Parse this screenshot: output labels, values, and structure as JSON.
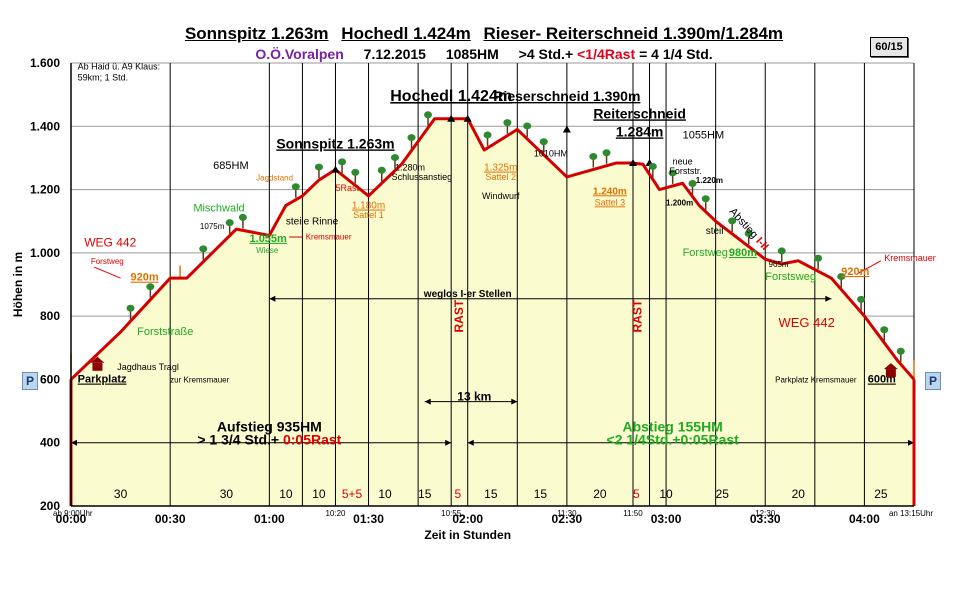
{
  "header": {
    "title_parts": [
      "Sonnspitz 1.263m",
      "Hochedl 1.424m",
      "Rieser- Reiterschneid 1.390m/1.284m"
    ],
    "region": "O.Ö.Voralpen",
    "date": "7.12.2015",
    "hm": "1085HM",
    "time_prefix": ">4 Std.+",
    "time_rast": "<1/4Rast",
    "time_total": "= 4 1/4 Std.",
    "badge": "60/15",
    "colors": {
      "region": "#7a1fa2",
      "rast": "#e0001a"
    }
  },
  "parking": {
    "left": "P",
    "right": "P"
  },
  "chart_data": {
    "type": "area",
    "xlabel": "Zeit in Stunden",
    "ylabel": "Höhen in m",
    "xlim": [
      0,
      255
    ],
    "ylim": [
      200,
      1600
    ],
    "x_ticks": [
      {
        "v": 0,
        "label": "00:00"
      },
      {
        "v": 30,
        "label": "00:30"
      },
      {
        "v": 60,
        "label": "01:00"
      },
      {
        "v": 90,
        "label": "01:30"
      },
      {
        "v": 120,
        "label": "02:00"
      },
      {
        "v": 150,
        "label": "02:30"
      },
      {
        "v": 180,
        "label": "03:00"
      },
      {
        "v": 210,
        "label": "03:30"
      },
      {
        "v": 240,
        "label": "04:00"
      }
    ],
    "y_ticks": [
      {
        "v": 200,
        "label": "200"
      },
      {
        "v": 400,
        "label": "400"
      },
      {
        "v": 600,
        "label": "600"
      },
      {
        "v": 800,
        "label": "800"
      },
      {
        "v": 1000,
        "label": "1.000"
      },
      {
        "v": 1200,
        "label": "1.200"
      },
      {
        "v": 1400,
        "label": "1.400"
      },
      {
        "v": 1600,
        "label": "1.600"
      }
    ],
    "profile": {
      "x": [
        0,
        15,
        30,
        35,
        50,
        60,
        65,
        70,
        75,
        80,
        90,
        100,
        110,
        115,
        117,
        120,
        125,
        135,
        150,
        165,
        170,
        173,
        178,
        185,
        190,
        195,
        210,
        215,
        220,
        230,
        240,
        250,
        255
      ],
      "y": [
        600,
        750,
        920,
        920,
        1075,
        1055,
        1150,
        1180,
        1230,
        1263,
        1180,
        1280,
        1424,
        1424,
        1424,
        1424,
        1325,
        1390,
        1240,
        1284,
        1284,
        1280,
        1200,
        1220,
        1150,
        1100,
        980,
        965,
        975,
        920,
        800,
        660,
        600
      ]
    },
    "verticals_x": [
      30,
      60,
      70,
      80,
      90,
      105,
      115,
      120,
      135,
      150,
      170,
      175,
      180,
      195,
      210,
      225,
      240,
      255
    ],
    "segments": [
      {
        "x": 15,
        "label": "30"
      },
      {
        "x": 47,
        "label": "30"
      },
      {
        "x": 65,
        "label": "10"
      },
      {
        "x": 75,
        "label": "10"
      },
      {
        "x": 85,
        "label": "5+5"
      },
      {
        "x": 95,
        "label": "10"
      },
      {
        "x": 107,
        "label": "15"
      },
      {
        "x": 117,
        "label": "5"
      },
      {
        "x": 127,
        "label": "15"
      },
      {
        "x": 142,
        "label": "15"
      },
      {
        "x": 160,
        "label": "20"
      },
      {
        "x": 171,
        "label": "5"
      },
      {
        "x": 180,
        "label": "10"
      },
      {
        "x": 197,
        "label": "25"
      },
      {
        "x": 220,
        "label": "20"
      },
      {
        "x": 245,
        "label": "25"
      }
    ],
    "small_times": [
      {
        "x": 0,
        "label": "ab 9:00Uhr"
      },
      {
        "x": 80,
        "label": "10:20"
      },
      {
        "x": 115,
        "label": "10:55"
      },
      {
        "x": 150,
        "label": "11:30"
      },
      {
        "x": 170,
        "label": "11:50"
      },
      {
        "x": 210,
        "label": "12:30"
      },
      {
        "x": 255,
        "label": "an 13:15Uhr"
      }
    ],
    "annotations": [
      {
        "x": 2,
        "y": 1580,
        "text": "Ab Haid ü. A9 Klaus:",
        "size": 9,
        "color": "#000",
        "bold": false
      },
      {
        "x": 2,
        "y": 1545,
        "text": "59km; 1 Std.",
        "size": 9,
        "color": "#000",
        "bold": false
      },
      {
        "x": 80,
        "y": 1330,
        "text": "Sonnspitz 1.263m",
        "size": 14,
        "color": "#000",
        "bold": true,
        "underline": true,
        "anchor": "middle"
      },
      {
        "x": 43,
        "y": 1265,
        "text": "685HM",
        "size": 11,
        "color": "#000",
        "bold": false
      },
      {
        "x": 115,
        "y": 1480,
        "text": "Hochedl 1.424m",
        "size": 16,
        "color": "#000",
        "bold": true,
        "underline": true,
        "anchor": "middle"
      },
      {
        "x": 150,
        "y": 1480,
        "text": "Rieserschneid  1.390m",
        "size": 14,
        "color": "#000",
        "bold": true,
        "underline": true,
        "anchor": "middle"
      },
      {
        "x": 172,
        "y": 1425,
        "text": "Reiterschneid",
        "size": 14,
        "color": "#000",
        "bold": true,
        "underline": true,
        "anchor": "middle"
      },
      {
        "x": 172,
        "y": 1368,
        "text": "1.284m",
        "size": 14,
        "color": "#000",
        "bold": true,
        "underline": true,
        "anchor": "middle"
      },
      {
        "x": 185,
        "y": 1362,
        "text": "1055HM",
        "size": 11,
        "color": "#000",
        "bold": false
      },
      {
        "x": 98,
        "y": 1260,
        "text": "1.280m",
        "size": 9,
        "color": "#000",
        "bold": false
      },
      {
        "x": 97,
        "y": 1230,
        "text": "Schlussanstieg",
        "size": 9,
        "color": "#000",
        "bold": false
      },
      {
        "x": 140,
        "y": 1305,
        "text": "1010HM",
        "size": 9,
        "color": "#000",
        "bold": false
      },
      {
        "x": 130,
        "y": 1260,
        "text": "1.325m",
        "size": 10,
        "color": "#e07000",
        "bold": false,
        "underline": true,
        "anchor": "middle"
      },
      {
        "x": 130,
        "y": 1230,
        "text": "Sattel 2",
        "size": 9,
        "color": "#e07000",
        "bold": false,
        "anchor": "middle"
      },
      {
        "x": 130,
        "y": 1170,
        "text": "Windwurf",
        "size": 9,
        "color": "#000",
        "bold": false,
        "anchor": "middle"
      },
      {
        "x": 90,
        "y": 1140,
        "text": "1.180m",
        "size": 10,
        "color": "#e07000",
        "bold": false,
        "underline": true,
        "anchor": "middle"
      },
      {
        "x": 90,
        "y": 1110,
        "text": "Sattel 1",
        "size": 9,
        "color": "#e07000",
        "bold": false,
        "anchor": "middle"
      },
      {
        "x": 163,
        "y": 1185,
        "text": "1.240m",
        "size": 10,
        "color": "#e07000",
        "bold": true,
        "underline": true,
        "anchor": "middle"
      },
      {
        "x": 163,
        "y": 1150,
        "text": "Sattel 3",
        "size": 9,
        "color": "#e07000",
        "bold": false,
        "underline": true,
        "anchor": "middle"
      },
      {
        "x": 182,
        "y": 1280,
        "text": "neue",
        "size": 9,
        "color": "#000",
        "bold": false
      },
      {
        "x": 181,
        "y": 1250,
        "text": "Forststr.",
        "size": 9,
        "color": "#000",
        "bold": false
      },
      {
        "x": 189,
        "y": 1220,
        "text": "1.220m",
        "size": 8,
        "color": "#000",
        "bold": true
      },
      {
        "x": 180,
        "y": 1150,
        "text": "1.200m",
        "size": 8,
        "color": "#000",
        "bold": true
      },
      {
        "x": 192,
        "y": 1060,
        "text": "steil",
        "size": 10,
        "color": "#000",
        "bold": false
      },
      {
        "x": 56,
        "y": 1228,
        "text": "Jagdstand",
        "size": 8,
        "color": "#e07000",
        "bold": false
      },
      {
        "x": 80,
        "y": 1195,
        "text": "5Rast",
        "size": 9,
        "color": "#e00000",
        "bold": false
      },
      {
        "x": 65,
        "y": 1090,
        "text": "steile Rinne",
        "size": 10,
        "color": "#000",
        "bold": false
      },
      {
        "x": 71,
        "y": 1043,
        "text": "Kremsmauer",
        "size": 8,
        "color": "#e00000",
        "bold": false
      },
      {
        "x": 54,
        "y": 1035,
        "text": "1.055m",
        "size": 11,
        "color": "#22aa22",
        "bold": true,
        "underline": true
      },
      {
        "x": 56,
        "y": 1000,
        "text": "Wiese",
        "size": 8,
        "color": "#22aa22",
        "bold": false
      },
      {
        "x": 39,
        "y": 1075,
        "text": "1075m",
        "size": 8,
        "color": "#000",
        "bold": false
      },
      {
        "x": 37,
        "y": 1130,
        "text": "Mischwald",
        "size": 11,
        "color": "#22aa22",
        "bold": false
      },
      {
        "x": 4,
        "y": 1020,
        "text": "WEG 442",
        "size": 12,
        "color": "#e00000",
        "bold": false
      },
      {
        "x": 6,
        "y": 965,
        "text": "Forstweg",
        "size": 8,
        "color": "#e00000",
        "bold": false
      },
      {
        "x": 18,
        "y": 912,
        "text": "920m",
        "size": 11,
        "color": "#e07000",
        "bold": true,
        "underline": true
      },
      {
        "x": 20,
        "y": 740,
        "text": "Forststraße",
        "size": 11,
        "color": "#22aa22",
        "bold": false
      },
      {
        "x": 14,
        "y": 630,
        "text": "Jagdhaus Tragl",
        "size": 9,
        "color": "#000",
        "bold": false
      },
      {
        "x": 2,
        "y": 590,
        "text": "Parkplatz",
        "size": 11,
        "color": "#000",
        "bold": true,
        "underline": true
      },
      {
        "x": 30,
        "y": 590,
        "text": "zur Kremsmauer",
        "size": 8,
        "color": "#000",
        "bold": false
      },
      {
        "x": 120,
        "y": 860,
        "text": "weglos I-er Stellen",
        "size": 10,
        "color": "#000",
        "bold": true,
        "anchor": "middle"
      },
      {
        "x": 122,
        "y": 533,
        "text": "13 km",
        "size": 12,
        "color": "#000",
        "bold": true,
        "anchor": "middle"
      },
      {
        "x": 60,
        "y": 435,
        "text": "Aufstieg 935HM",
        "size": 14,
        "color": "#000",
        "bold": true,
        "anchor": "middle"
      },
      {
        "x": 182,
        "y": 435,
        "text": "Abstieg 155HM",
        "size": 14,
        "color": "#22aa22",
        "bold": true,
        "anchor": "middle"
      },
      {
        "x": 182,
        "y": 395,
        "text": "<2 1/4Std.+0:05Rast",
        "size": 14,
        "color": "#22aa22",
        "bold": true,
        "anchor": "middle"
      },
      {
        "x": 185,
        "y": 990,
        "text": "Forstweg",
        "size": 11,
        "color": "#22aa22",
        "bold": false
      },
      {
        "x": 199,
        "y": 990,
        "text": "980m",
        "size": 11,
        "color": "#22aa22",
        "bold": true,
        "underline": true
      },
      {
        "x": 211,
        "y": 955,
        "text": "965m",
        "size": 8,
        "color": "#000",
        "bold": false
      },
      {
        "x": 210,
        "y": 915,
        "text": "Forstsweg",
        "size": 11,
        "color": "#22aa22",
        "bold": false
      },
      {
        "x": 233,
        "y": 930,
        "text": "920m",
        "size": 11,
        "color": "#e07000",
        "bold": true,
        "underline": true
      },
      {
        "x": 246,
        "y": 975,
        "text": "Kremsmauer",
        "size": 9,
        "color": "#e00000",
        "bold": false
      },
      {
        "x": 214,
        "y": 765,
        "text": "WEG 442",
        "size": 13,
        "color": "#e00000",
        "bold": false
      },
      {
        "x": 213,
        "y": 590,
        "text": "Parkplatz Kremsmauer",
        "size": 8,
        "color": "#000",
        "bold": false
      },
      {
        "x": 241,
        "y": 590,
        "text": "600m",
        "size": 11,
        "color": "#000",
        "bold": true,
        "underline": true
      }
    ],
    "aufstieg_time": {
      "prefix": "> 1 3/4 Std.+ ",
      "rast": "0:05Rast"
    },
    "abstieg_label": "Abstieg I-II",
    "rast_labels": [
      {
        "x": 117,
        "text": "RAST"
      },
      {
        "x": 171,
        "text": "RAST"
      }
    ]
  }
}
